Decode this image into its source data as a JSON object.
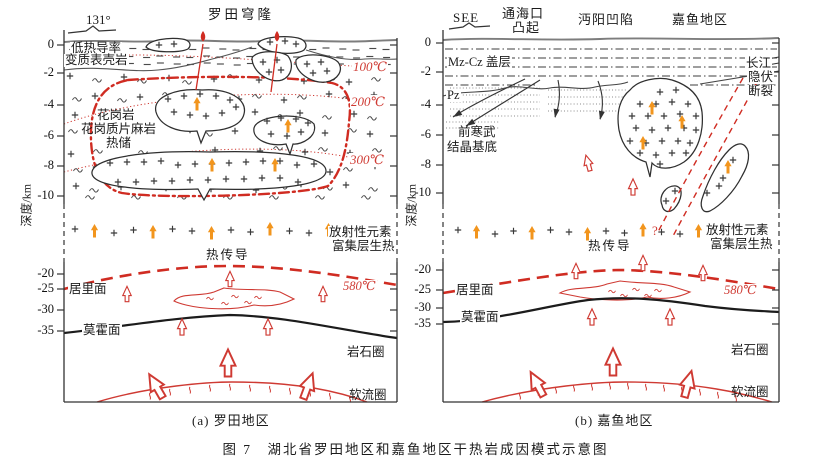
{
  "figure": {
    "caption": "图 7　湖北省罗田地区和嘉鱼地区干热岩成因模式示意图"
  },
  "colors": {
    "red": "#cf3a33",
    "orange": "#f2951d",
    "line": "#333333"
  },
  "panel_a": {
    "caption": "(a) 罗田地区",
    "title": "罗田穹隆",
    "azimuth": "131°",
    "axis_label": "深度/km",
    "ticks": [
      "0",
      "-2",
      "-4",
      "-6",
      "-8",
      "-10",
      "-20",
      "-25",
      "-30",
      "-35"
    ],
    "labels": {
      "low_conductivity_1": "低热导率",
      "low_conductivity_2": "变质表壳岩",
      "granite_1": "花岗岩",
      "granite_2": "花岗质片麻岩",
      "granite_3": "热储",
      "isotherm_100": "100℃",
      "isotherm_200": "200℃",
      "isotherm_300": "300℃",
      "radiogenic_1": "放射性元素",
      "radiogenic_2": "富集层生热",
      "heat_conduction": "热传导",
      "curie_surface": "居里面",
      "curie_temp": "580℃",
      "moho": "莫霍面",
      "lithosphere": "岩石圈",
      "asthenosphere": "软流圈"
    }
  },
  "panel_b": {
    "caption": "(b) 嘉鱼地区",
    "direction": "SEE",
    "axis_label": "深度/km",
    "ticks": [
      "0",
      "-2",
      "-4",
      "-6",
      "-8",
      "-10",
      "-20",
      "-25",
      "-30",
      "-35"
    ],
    "labels": {
      "tonghaikou_1": "通海口",
      "tonghaikou_2": "凸起",
      "mianyang_sag": "沔阳凹陷",
      "jiayu_area": "嘉鱼地区",
      "caprock": "Mz-Cz 盖层",
      "pz": "Pz",
      "yangtze_fault_1": "长江",
      "yangtze_fault_2": "隐伏",
      "yangtze_fault_3": "断裂",
      "basement_1": "前寒武",
      "basement_2": "结晶基底",
      "question_mark": "?",
      "radiogenic_1": "放射性元素",
      "radiogenic_2": "富集层生热",
      "heat_conduction": "热传导",
      "curie_surface": "居里面",
      "curie_temp": "580℃",
      "moho": "莫霍面",
      "lithosphere": "岩石圈",
      "asthenosphere": "软流圈"
    }
  }
}
